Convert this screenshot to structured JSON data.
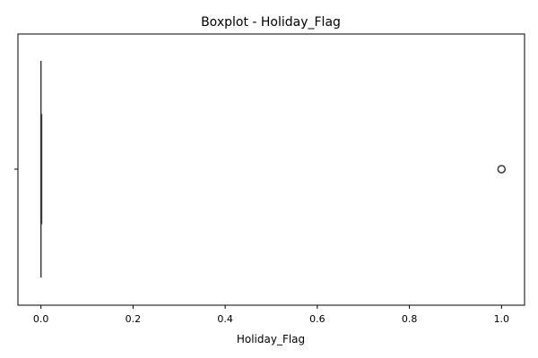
{
  "chart_data": {
    "type": "boxplot",
    "title": "Boxplot - Holiday_Flag",
    "xlabel": "Holiday_Flag",
    "ylabel": "",
    "orientation": "horizontal",
    "xlim": [
      -0.05,
      1.05
    ],
    "xticks": [
      0.0,
      0.2,
      0.4,
      0.6,
      0.8,
      1.0
    ],
    "xtick_labels": [
      "0.0",
      "0.2",
      "0.4",
      "0.6",
      "0.8",
      "1.0"
    ],
    "grid": false,
    "series": [
      {
        "min": 0,
        "q1": 0,
        "median": 0,
        "q3": 0,
        "max": 0,
        "outliers": [
          1.0
        ]
      }
    ],
    "colors": {
      "box": "#4c72b0",
      "line": "#3a3a3a",
      "outlier": "#3a3a3a"
    }
  }
}
